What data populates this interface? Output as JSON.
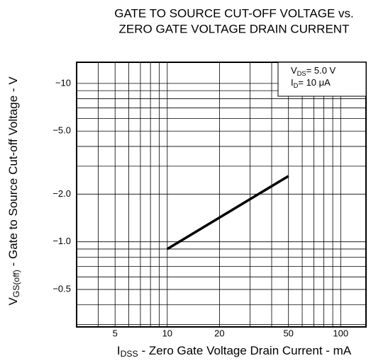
{
  "chart_data": {
    "type": "line",
    "title": [
      "GATE TO SOURCE CUT-OFF VOLTAGE vs.",
      "ZERO GATE VOLTAGE DRAIN CURRENT"
    ],
    "x_label": {
      "main": "I",
      "sub": "DSS",
      "rest": " - Zero Gate Voltage Drain Current - mA"
    },
    "y_label": {
      "main": "V",
      "sub": "GS(off)",
      "rest": " - Gate to Source Cut-off Voltage - V"
    },
    "annotation": [
      {
        "main": "V",
        "sub": "DS",
        "rest": "= 5.0  V"
      },
      {
        "main": "I",
        "sub": "D",
        "rest": "= 10  μA"
      }
    ],
    "log_x": true,
    "log_y": true,
    "xlim": [
      3,
      140
    ],
    "ylim": [
      0.29,
      13.6
    ],
    "xticks": [
      5,
      10,
      20,
      50,
      100
    ],
    "yticks": [
      {
        "value": 0.5,
        "label": "−0.5"
      },
      {
        "value": 1,
        "label": "−1.0"
      },
      {
        "value": 2,
        "label": "−2.0"
      },
      {
        "value": 5,
        "label": "−5.0"
      },
      {
        "value": 10,
        "label": "−10"
      }
    ],
    "xgrid": [
      4,
      5,
      6,
      7,
      8,
      9,
      10,
      20,
      30,
      40,
      50,
      60,
      70,
      80,
      90,
      100
    ],
    "ygrid": [
      0.3,
      0.4,
      0.5,
      0.6,
      0.7,
      0.8,
      0.9,
      1,
      2,
      3,
      4,
      5,
      6,
      7,
      8,
      9,
      10
    ],
    "x": [
      10,
      50
    ],
    "series": [
      {
        "color": "#000000",
        "values": [
          0.9,
          2.6
        ]
      }
    ]
  }
}
